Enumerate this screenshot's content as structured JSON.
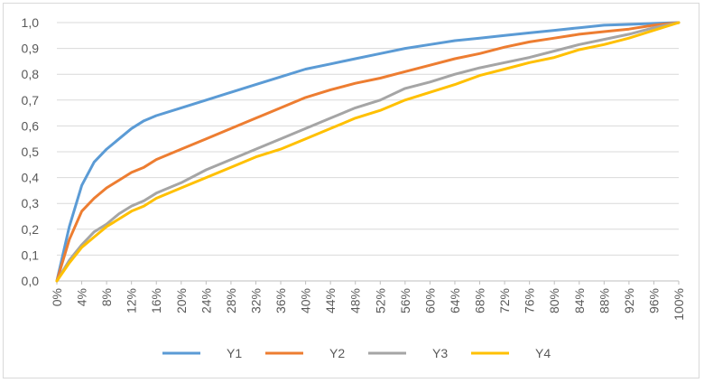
{
  "chart_data": {
    "type": "line",
    "title": "",
    "xlabel": "",
    "ylabel": "",
    "ylim": [
      0,
      1
    ],
    "y_ticks": [
      "0,0",
      "0,1",
      "0,2",
      "0,3",
      "0,4",
      "0,5",
      "0,6",
      "0,7",
      "0,8",
      "0,9",
      "1,0"
    ],
    "x_ticks": [
      "0%",
      "4%",
      "8%",
      "12%",
      "16%",
      "20%",
      "24%",
      "28%",
      "32%",
      "36%",
      "40%",
      "44%",
      "48%",
      "52%",
      "56%",
      "60%",
      "64%",
      "68%",
      "72%",
      "76%",
      "80%",
      "84%",
      "88%",
      "92%",
      "96%",
      "100%"
    ],
    "grid": "horizontal",
    "legend_position": "bottom",
    "x": [
      0,
      2,
      4,
      6,
      8,
      10,
      12,
      14,
      16,
      20,
      24,
      28,
      32,
      36,
      40,
      44,
      48,
      52,
      56,
      60,
      64,
      68,
      72,
      76,
      80,
      84,
      88,
      92,
      96,
      100
    ],
    "series": [
      {
        "name": "Y1",
        "color": "#5b9bd5",
        "values": [
          0,
          0.21,
          0.37,
          0.46,
          0.51,
          0.55,
          0.59,
          0.62,
          0.64,
          0.67,
          0.7,
          0.73,
          0.76,
          0.79,
          0.82,
          0.84,
          0.86,
          0.88,
          0.9,
          0.915,
          0.93,
          0.94,
          0.95,
          0.96,
          0.97,
          0.98,
          0.99,
          0.993,
          0.997,
          1.0
        ]
      },
      {
        "name": "Y2",
        "color": "#ed7d31",
        "values": [
          0,
          0.16,
          0.27,
          0.32,
          0.36,
          0.39,
          0.42,
          0.44,
          0.47,
          0.51,
          0.55,
          0.59,
          0.63,
          0.67,
          0.71,
          0.74,
          0.765,
          0.785,
          0.81,
          0.835,
          0.86,
          0.88,
          0.905,
          0.925,
          0.94,
          0.955,
          0.965,
          0.975,
          0.99,
          1.0
        ]
      },
      {
        "name": "Y3",
        "color": "#a5a5a5",
        "values": [
          0,
          0.08,
          0.14,
          0.19,
          0.22,
          0.26,
          0.29,
          0.31,
          0.34,
          0.38,
          0.43,
          0.47,
          0.51,
          0.55,
          0.59,
          0.63,
          0.67,
          0.7,
          0.745,
          0.77,
          0.8,
          0.825,
          0.845,
          0.865,
          0.89,
          0.915,
          0.935,
          0.955,
          0.98,
          1.0
        ]
      },
      {
        "name": "Y4",
        "color": "#ffc000",
        "values": [
          0,
          0.07,
          0.13,
          0.17,
          0.21,
          0.24,
          0.27,
          0.29,
          0.32,
          0.36,
          0.4,
          0.44,
          0.48,
          0.51,
          0.55,
          0.59,
          0.63,
          0.66,
          0.7,
          0.73,
          0.76,
          0.795,
          0.82,
          0.845,
          0.865,
          0.895,
          0.915,
          0.94,
          0.97,
          1.0
        ]
      }
    ]
  }
}
